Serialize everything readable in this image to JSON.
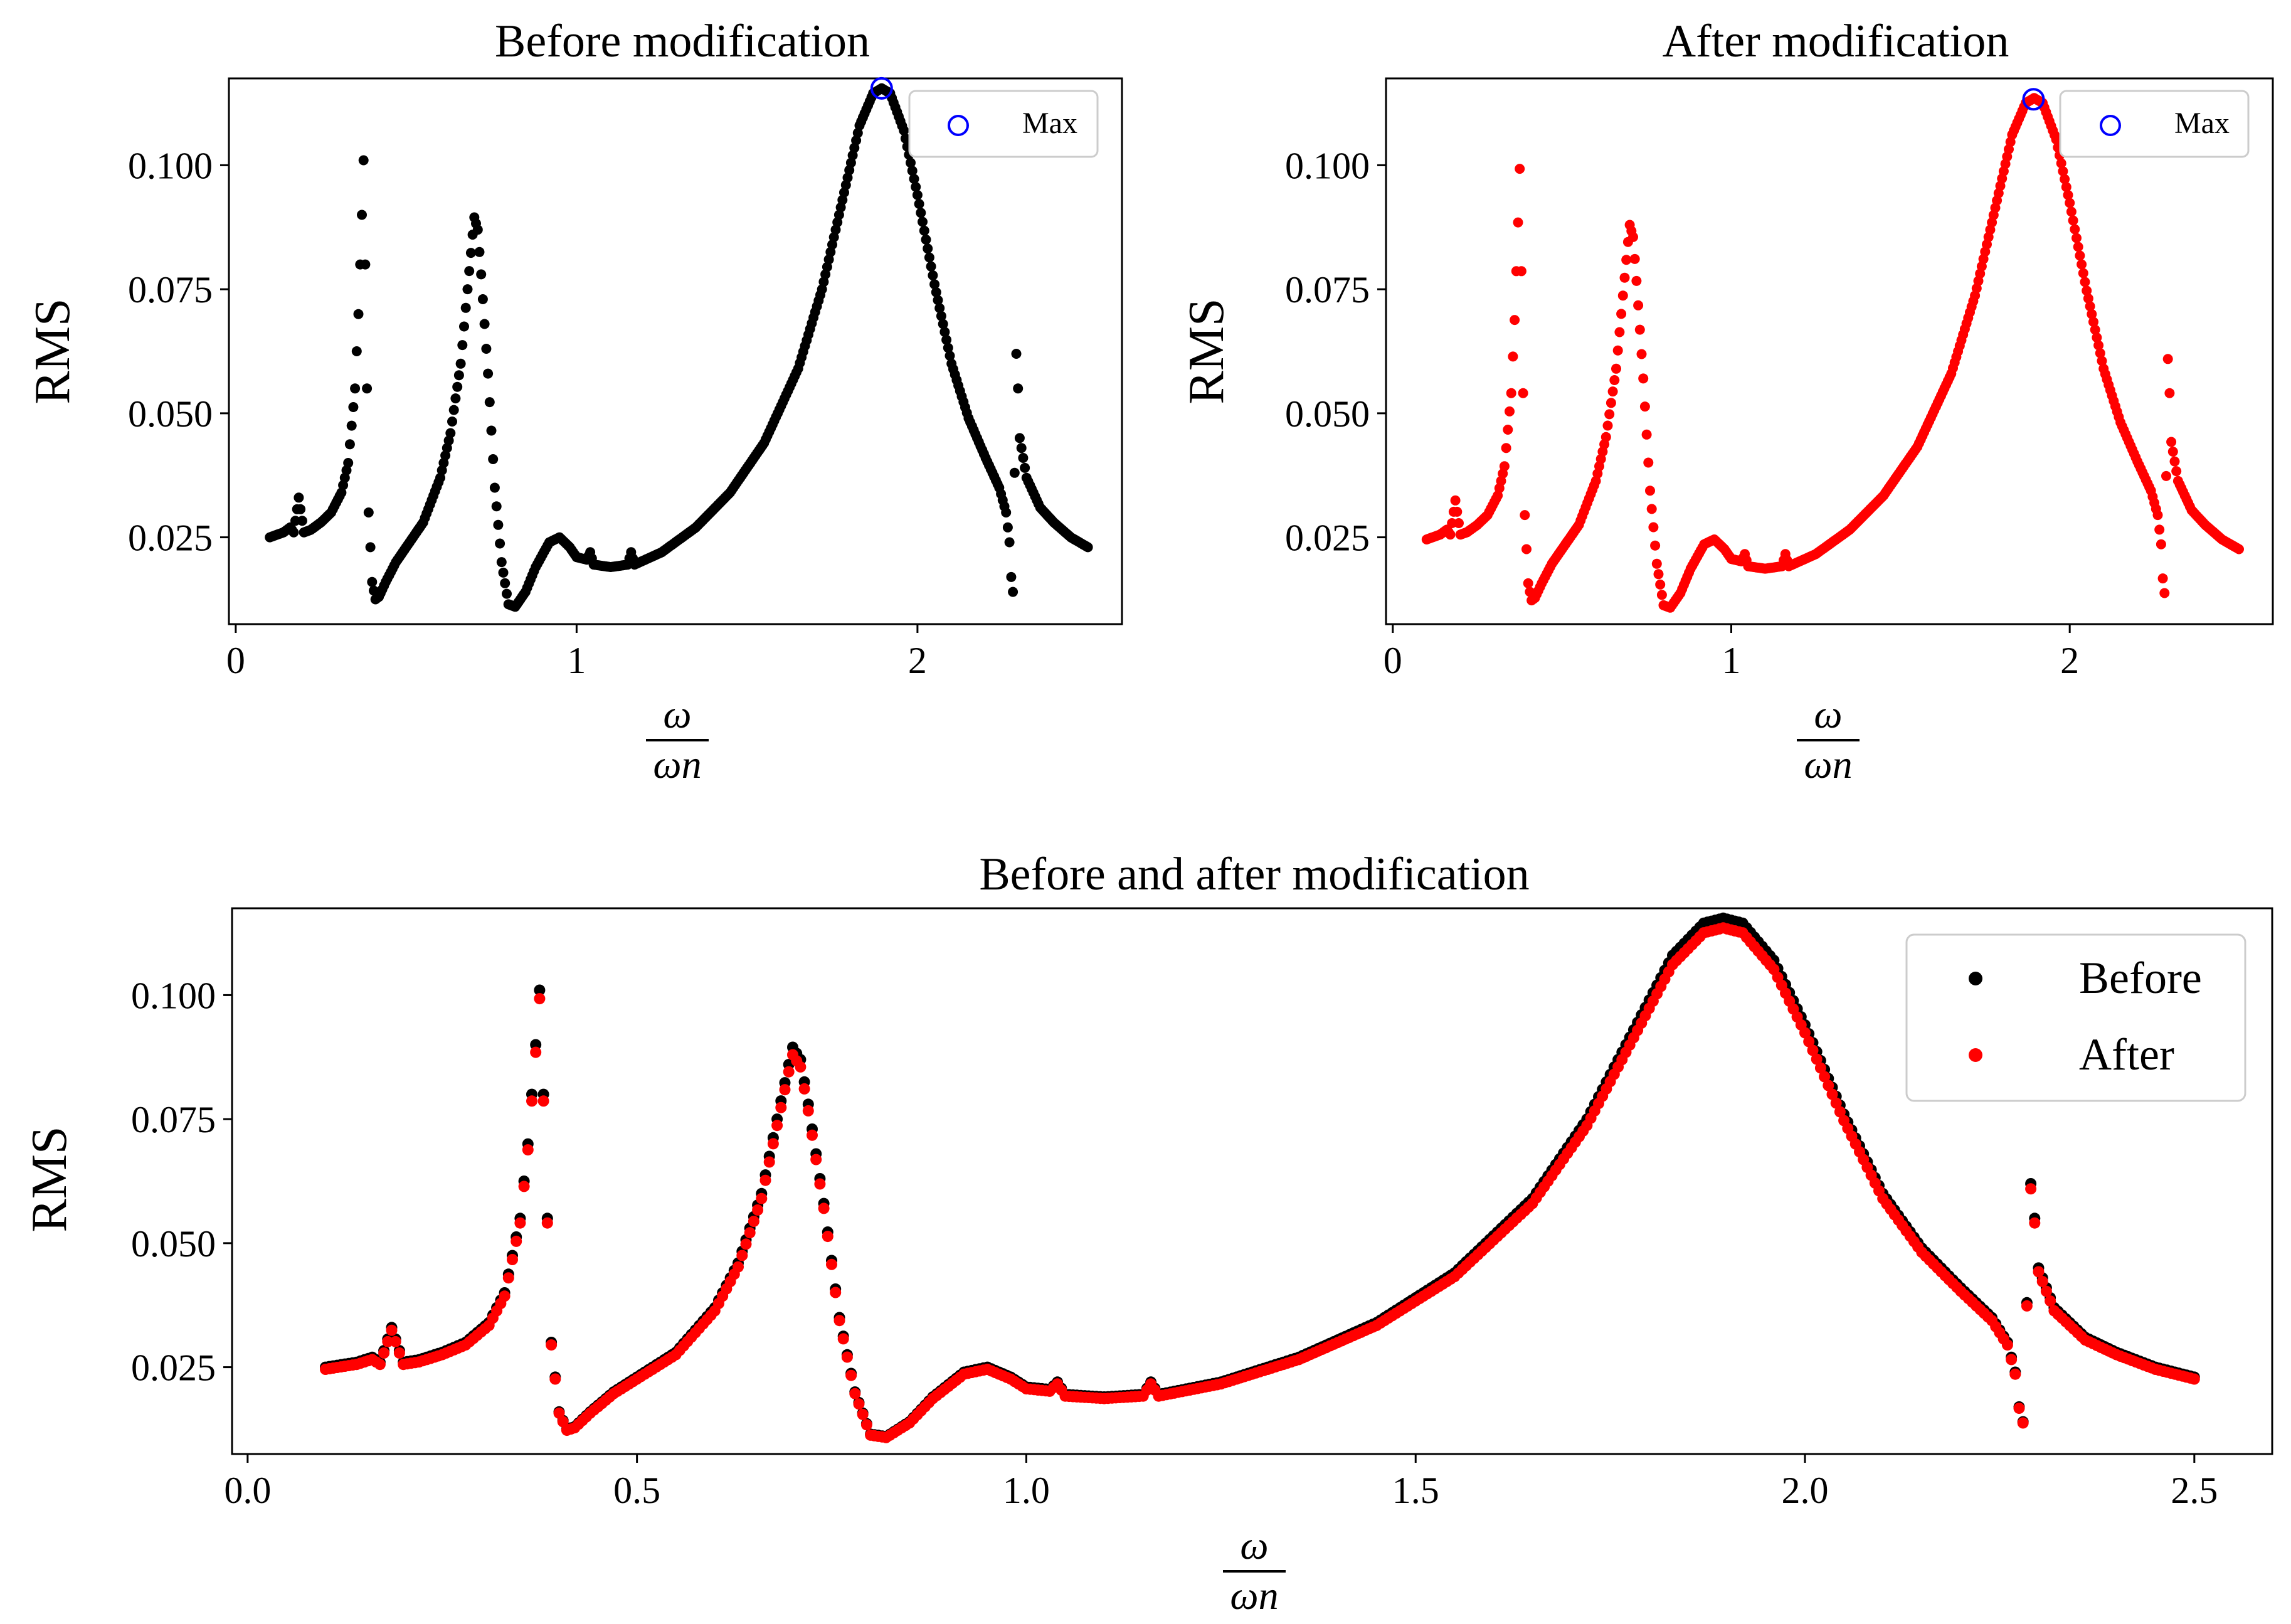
{
  "figure": {
    "colors": {
      "before": "#000000",
      "after": "#ff0000",
      "max_marker": "#0000ff",
      "frame": "#000000",
      "legend_border": "#cccccc"
    }
  },
  "chart_data": [
    {
      "id": "before",
      "type": "scatter",
      "title": "Before modification",
      "xlabel_num": "ω",
      "xlabel_den": "ωn",
      "ylabel": "RMS",
      "xlim": [
        -0.02,
        2.6
      ],
      "ylim": [
        0.0075,
        0.1175
      ],
      "xticks": [
        0,
        1,
        2
      ],
      "xtick_labels": [
        "0",
        "1",
        "2"
      ],
      "yticks": [
        0.025,
        0.05,
        0.075,
        0.1
      ],
      "ytick_labels": [
        "0.025",
        "0.050",
        "0.075",
        "0.100"
      ],
      "legend": {
        "position": "top-right",
        "entries": [
          {
            "label": "Max",
            "marker": "open-circle",
            "color": "#0000ff"
          }
        ]
      },
      "max_point": {
        "x": 1.895,
        "y": 0.1155
      },
      "series": [
        {
          "name": "RMS",
          "color": "#000000",
          "scale": 1.0
        }
      ]
    },
    {
      "id": "after",
      "type": "scatter",
      "title": "After modification",
      "xlabel_num": "ω",
      "xlabel_den": "ωn",
      "ylabel": "RMS",
      "xlim": [
        -0.02,
        2.6
      ],
      "ylim": [
        0.0075,
        0.1175
      ],
      "xticks": [
        0,
        1,
        2
      ],
      "xtick_labels": [
        "0",
        "1",
        "2"
      ],
      "yticks": [
        0.025,
        0.05,
        0.075,
        0.1
      ],
      "ytick_labels": [
        "0.025",
        "0.050",
        "0.075",
        "0.100"
      ],
      "legend": {
        "position": "top-right",
        "entries": [
          {
            "label": "Max",
            "marker": "open-circle",
            "color": "#0000ff"
          }
        ]
      },
      "max_point": {
        "x": 1.893,
        "y": 0.1133
      },
      "series": [
        {
          "name": "RMS",
          "color": "#ff0000",
          "scale": 0.983
        }
      ]
    },
    {
      "id": "combined",
      "type": "scatter",
      "title": "Before and after modification",
      "xlabel_num": "ω",
      "xlabel_den": "ωn",
      "ylabel": "RMS",
      "xlim": [
        -0.02,
        2.6
      ],
      "ylim": [
        0.0075,
        0.1175
      ],
      "xticks": [
        0,
        0.5,
        1,
        1.5,
        2,
        2.5
      ],
      "xtick_labels": [
        "0.0",
        "0.5",
        "1.0",
        "1.5",
        "2.0",
        "2.5"
      ],
      "yticks": [
        0.025,
        0.05,
        0.075,
        0.1
      ],
      "ytick_labels": [
        "0.025",
        "0.050",
        "0.075",
        "0.100"
      ],
      "legend": {
        "position": "top-right",
        "entries": [
          {
            "label": "Before",
            "marker": "filled-circle",
            "color": "#000000"
          },
          {
            "label": "After",
            "marker": "filled-circle",
            "color": "#ff0000"
          }
        ]
      },
      "series": [
        {
          "name": "Before",
          "color": "#000000",
          "scale": 1.0
        },
        {
          "name": "After",
          "color": "#ff0000",
          "scale": 0.983
        }
      ]
    }
  ],
  "rms_curve": {
    "x_start": 0.1,
    "x_end": 2.5,
    "step": 0.005,
    "knots": [
      [
        0.1,
        0.025
      ],
      [
        0.12,
        0.0255
      ],
      [
        0.14,
        0.026
      ],
      [
        0.16,
        0.027
      ],
      [
        0.17,
        0.026
      ],
      [
        0.185,
        0.033
      ],
      [
        0.2,
        0.026
      ],
      [
        0.22,
        0.0265
      ],
      [
        0.25,
        0.028
      ],
      [
        0.28,
        0.03
      ],
      [
        0.31,
        0.034
      ],
      [
        0.33,
        0.04
      ],
      [
        0.35,
        0.055
      ],
      [
        0.36,
        0.07
      ],
      [
        0.37,
        0.09
      ],
      [
        0.375,
        0.101
      ],
      [
        0.38,
        0.08
      ],
      [
        0.385,
        0.055
      ],
      [
        0.39,
        0.03
      ],
      [
        0.4,
        0.016
      ],
      [
        0.41,
        0.0125
      ],
      [
        0.42,
        0.013
      ],
      [
        0.44,
        0.016
      ],
      [
        0.47,
        0.02
      ],
      [
        0.5,
        0.023
      ],
      [
        0.55,
        0.028
      ],
      [
        0.6,
        0.037
      ],
      [
        0.63,
        0.046
      ],
      [
        0.66,
        0.06
      ],
      [
        0.68,
        0.075
      ],
      [
        0.695,
        0.086
      ],
      [
        0.7,
        0.0895
      ],
      [
        0.71,
        0.087
      ],
      [
        0.72,
        0.078
      ],
      [
        0.74,
        0.058
      ],
      [
        0.76,
        0.035
      ],
      [
        0.78,
        0.02
      ],
      [
        0.8,
        0.0115
      ],
      [
        0.82,
        0.011
      ],
      [
        0.85,
        0.014
      ],
      [
        0.88,
        0.019
      ],
      [
        0.92,
        0.024
      ],
      [
        0.95,
        0.025
      ],
      [
        0.98,
        0.023
      ],
      [
        1.0,
        0.021
      ],
      [
        1.03,
        0.0205
      ],
      [
        1.04,
        0.022
      ],
      [
        1.05,
        0.0195
      ],
      [
        1.1,
        0.019
      ],
      [
        1.15,
        0.0195
      ],
      [
        1.16,
        0.022
      ],
      [
        1.17,
        0.0195
      ],
      [
        1.25,
        0.022
      ],
      [
        1.35,
        0.027
      ],
      [
        1.45,
        0.034
      ],
      [
        1.55,
        0.044
      ],
      [
        1.65,
        0.059
      ],
      [
        1.72,
        0.075
      ],
      [
        1.78,
        0.093
      ],
      [
        1.83,
        0.108
      ],
      [
        1.87,
        0.1145
      ],
      [
        1.895,
        0.1155
      ],
      [
        1.92,
        0.1145
      ],
      [
        1.96,
        0.107
      ],
      [
        2.0,
        0.094
      ],
      [
        2.05,
        0.076
      ],
      [
        2.1,
        0.06
      ],
      [
        2.15,
        0.049
      ],
      [
        2.2,
        0.041
      ],
      [
        2.24,
        0.035
      ],
      [
        2.26,
        0.03
      ],
      [
        2.27,
        0.024
      ],
      [
        2.275,
        0.017
      ],
      [
        2.28,
        0.014
      ],
      [
        2.29,
        0.062
      ],
      [
        2.295,
        0.055
      ],
      [
        2.3,
        0.045
      ],
      [
        2.32,
        0.037
      ],
      [
        2.36,
        0.031
      ],
      [
        2.4,
        0.028
      ],
      [
        2.45,
        0.025
      ],
      [
        2.5,
        0.023
      ]
    ]
  }
}
